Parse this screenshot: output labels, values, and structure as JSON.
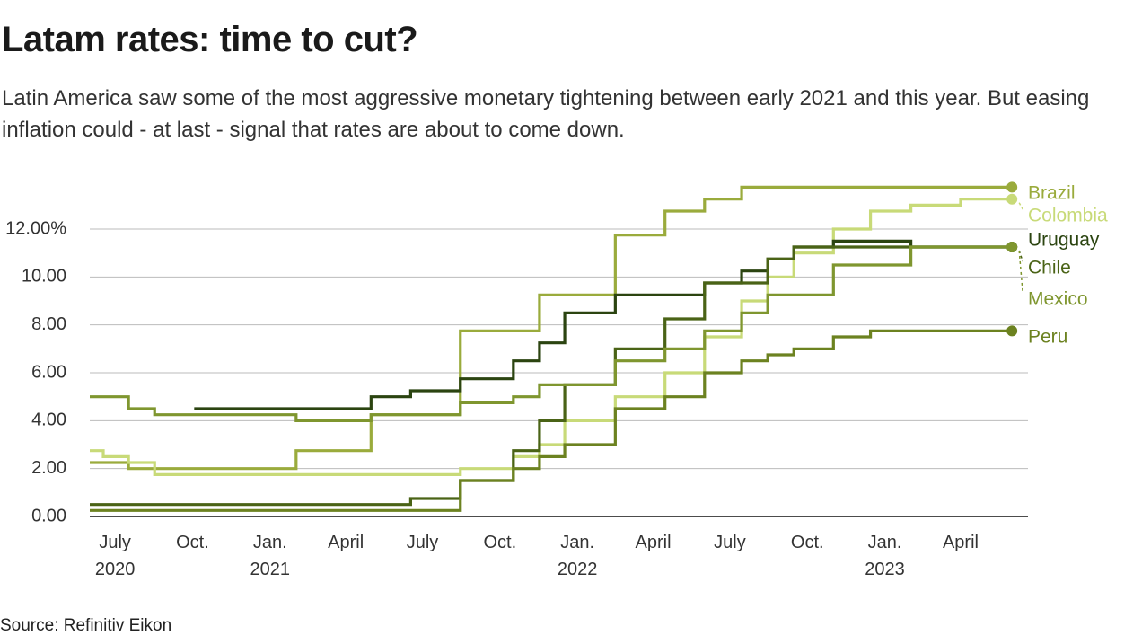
{
  "chart_data": {
    "type": "step",
    "title": "Latam rates: time to cut?",
    "subtitle": "Latin America saw some of the most aggressive monetary tightening between early 2021 and this year. But easing inflation could - at last - signal that rates are about to come down.",
    "source": "Source: Refinitiv Eikon",
    "xlim": [
      "2020-06-01",
      "2023-06-20"
    ],
    "xticks": [
      {
        "value": "2020-07-01",
        "label": "July\n2020"
      },
      {
        "value": "2020-10-01",
        "label": "Oct."
      },
      {
        "value": "2021-01-01",
        "label": "Jan.\n2021"
      },
      {
        "value": "2021-04-01",
        "label": "April"
      },
      {
        "value": "2021-07-01",
        "label": "July"
      },
      {
        "value": "2021-10-01",
        "label": "Oct."
      },
      {
        "value": "2022-01-01",
        "label": "Jan.\n2022"
      },
      {
        "value": "2022-04-01",
        "label": "April"
      },
      {
        "value": "2022-07-01",
        "label": "July"
      },
      {
        "value": "2022-10-01",
        "label": "Oct."
      },
      {
        "value": "2023-01-01",
        "label": "Jan.\n2023"
      },
      {
        "value": "2023-04-01",
        "label": "April"
      }
    ],
    "ylim": [
      0,
      14
    ],
    "yticks": [
      {
        "value": 0,
        "label": "0.00"
      },
      {
        "value": 2,
        "label": "2.00"
      },
      {
        "value": 4,
        "label": "4.00"
      },
      {
        "value": 6,
        "label": "6.00"
      },
      {
        "value": 8,
        "label": "8.00"
      },
      {
        "value": 10,
        "label": "10.00"
      },
      {
        "value": 12,
        "label": "12.00%"
      }
    ],
    "grid": true,
    "series": [
      {
        "name": "Brazil",
        "color": "#9aab3c",
        "x": [
          "2020-06-01",
          "2020-07-17",
          "2021-02-01",
          "2021-05-01",
          "2021-08-15",
          "2021-11-17",
          "2022-02-15",
          "2022-04-15",
          "2022-06-01",
          "2022-07-15",
          "2023-06-01"
        ],
        "values": [
          2.25,
          2.0,
          2.75,
          4.25,
          7.75,
          9.25,
          11.75,
          12.75,
          13.25,
          13.75,
          13.75
        ]
      },
      {
        "name": "Colombia",
        "color": "#c8da78",
        "x": [
          "2020-06-01",
          "2020-06-17",
          "2020-07-17",
          "2020-08-17",
          "2021-08-15",
          "2021-10-17",
          "2021-11-17",
          "2021-12-17",
          "2022-02-15",
          "2022-04-15",
          "2022-06-01",
          "2022-07-15",
          "2022-08-15",
          "2022-09-15",
          "2022-11-01",
          "2022-12-15",
          "2023-02-01",
          "2023-04-01",
          "2023-06-01"
        ],
        "values": [
          2.75,
          2.5,
          2.25,
          1.75,
          2.0,
          2.5,
          3.0,
          4.0,
          5.0,
          6.0,
          7.5,
          9.0,
          10.0,
          11.0,
          12.0,
          12.75,
          13.0,
          13.25,
          13.25
        ]
      },
      {
        "name": "Uruguay",
        "color": "#2b4410",
        "x": [
          "2020-10-03",
          "2021-05-01",
          "2021-06-17",
          "2021-08-15",
          "2021-10-17",
          "2021-11-17",
          "2021-12-17",
          "2022-02-15",
          "2022-06-01",
          "2022-07-15",
          "2022-08-15",
          "2022-09-15",
          "2022-11-01",
          "2023-02-01",
          "2023-06-01"
        ],
        "values": [
          4.5,
          5.0,
          5.25,
          5.75,
          6.5,
          7.25,
          8.5,
          9.25,
          9.75,
          10.25,
          10.75,
          11.25,
          11.5,
          11.25,
          11.25
        ]
      },
      {
        "name": "Chile",
        "color": "#4a6316",
        "x": [
          "2020-06-01",
          "2021-06-17",
          "2021-08-15",
          "2021-10-17",
          "2021-11-17",
          "2021-12-17",
          "2022-02-15",
          "2022-04-15",
          "2022-06-01",
          "2022-08-15",
          "2022-09-15",
          "2023-06-01"
        ],
        "values": [
          0.5,
          0.75,
          1.5,
          2.75,
          4.0,
          5.5,
          7.0,
          8.25,
          9.75,
          10.75,
          11.25,
          11.25
        ]
      },
      {
        "name": "Mexico",
        "color": "#7f962f",
        "x": [
          "2020-06-01",
          "2020-07-17",
          "2020-08-17",
          "2021-02-01",
          "2021-05-01",
          "2021-08-15",
          "2021-10-17",
          "2021-11-17",
          "2022-02-15",
          "2022-04-15",
          "2022-06-01",
          "2022-07-15",
          "2022-08-15",
          "2022-11-01",
          "2023-02-01",
          "2023-06-01"
        ],
        "values": [
          5.0,
          4.5,
          4.25,
          4.0,
          4.25,
          4.75,
          5.0,
          5.5,
          6.5,
          7.0,
          7.75,
          8.5,
          9.25,
          10.5,
          11.25,
          11.25
        ]
      },
      {
        "name": "Peru",
        "color": "#6c8220",
        "x": [
          "2020-06-01",
          "2021-08-15",
          "2021-10-17",
          "2021-11-17",
          "2021-12-17",
          "2022-02-15",
          "2022-04-15",
          "2022-06-01",
          "2022-07-15",
          "2022-08-15",
          "2022-09-15",
          "2022-11-01",
          "2022-12-15",
          "2023-06-01"
        ],
        "values": [
          0.25,
          1.5,
          2.0,
          2.5,
          3.0,
          4.5,
          5.0,
          6.0,
          6.5,
          6.75,
          7.0,
          7.5,
          7.75,
          7.75
        ]
      }
    ]
  }
}
